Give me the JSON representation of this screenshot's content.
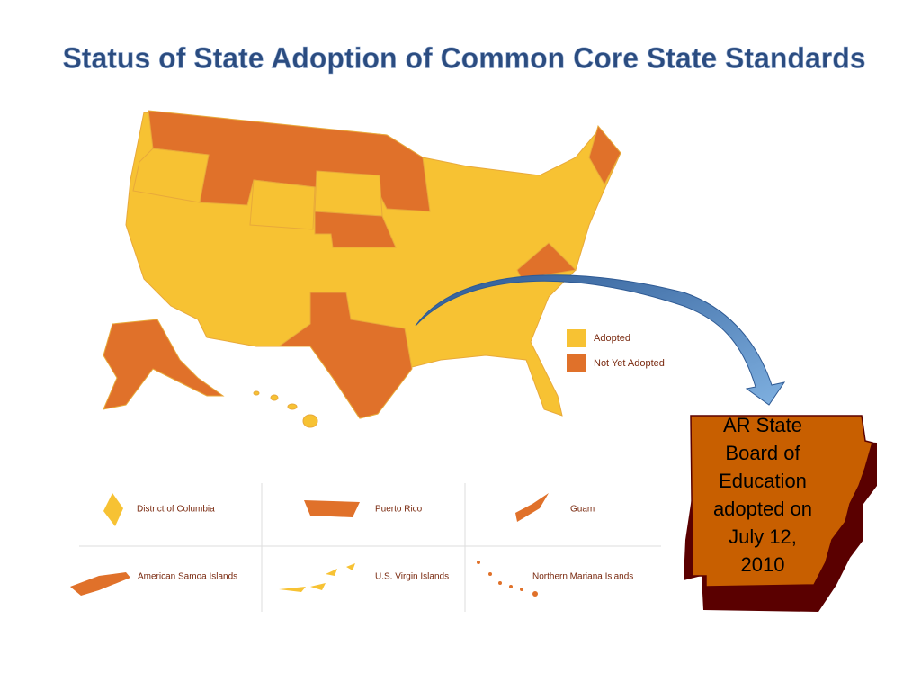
{
  "title": "Status of State Adoption of Common Core State Standards",
  "legend": [
    {
      "label": "Adopted",
      "color": "#f7c233"
    },
    {
      "label": "Not Yet Adopted",
      "color": "#e0712a"
    }
  ],
  "territories": [
    "District of Columbia",
    "Puerto Rico",
    "Guam",
    "American Samoa Islands",
    "U.S. Virgin Islands",
    "Northern Mariana Islands"
  ],
  "callout": [
    "AR State",
    "Board of",
    "Education",
    "adopted on",
    "July 12,",
    "2010"
  ]
}
